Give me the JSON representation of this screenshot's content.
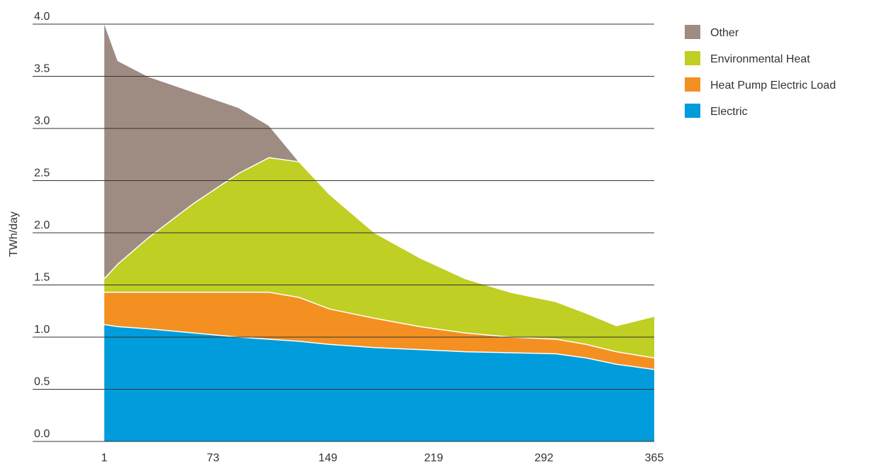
{
  "chart_data": {
    "type": "area",
    "stacked": true,
    "ylabel": "TWh/day",
    "xlabel": "",
    "ylim": [
      0,
      4.0
    ],
    "xlim": [
      1,
      365
    ],
    "yticks": [
      0.0,
      0.5,
      1.0,
      1.5,
      2.0,
      2.5,
      3.0,
      3.5,
      4.0
    ],
    "ytick_labels": [
      "0.0",
      "0.5",
      "1.0",
      "1.5",
      "2.0",
      "2.5",
      "3.0",
      "3.5",
      "4.0"
    ],
    "xticks": [
      1,
      73,
      149,
      219,
      292,
      365
    ],
    "xtick_labels": [
      "1",
      "73",
      "149",
      "219",
      "292",
      "365"
    ],
    "grid": "horizontal",
    "legend_position": "right",
    "x": [
      1,
      10,
      30,
      60,
      90,
      110,
      130,
      150,
      180,
      210,
      240,
      270,
      300,
      320,
      340,
      365
    ],
    "series": [
      {
        "name": "Electric",
        "color": "#009CDB",
        "values": [
          1.12,
          1.1,
          1.08,
          1.04,
          1.0,
          0.98,
          0.96,
          0.93,
          0.9,
          0.88,
          0.86,
          0.85,
          0.84,
          0.8,
          0.74,
          0.69
        ]
      },
      {
        "name": "Heat Pump Electric Load",
        "color": "#F39021",
        "values": [
          0.31,
          0.33,
          0.35,
          0.39,
          0.43,
          0.45,
          0.42,
          0.34,
          0.28,
          0.22,
          0.18,
          0.15,
          0.14,
          0.13,
          0.12,
          0.11
        ]
      },
      {
        "name": "Environmental Heat",
        "color": "#BFCF23",
        "values": [
          0.13,
          0.27,
          0.52,
          0.85,
          1.14,
          1.29,
          1.3,
          1.1,
          0.82,
          0.66,
          0.52,
          0.43,
          0.36,
          0.3,
          0.25,
          0.4
        ]
      },
      {
        "name": "Other",
        "color": "#9E8C82",
        "values": [
          2.45,
          1.95,
          1.55,
          1.07,
          0.63,
          0.31,
          0.0,
          0.0,
          0.0,
          0.0,
          0.0,
          0.0,
          0.0,
          0.0,
          0.0,
          0.0
        ]
      }
    ],
    "legend": [
      {
        "label": "Other",
        "color": "#9E8C82"
      },
      {
        "label": "Environmental Heat",
        "color": "#BFCF23"
      },
      {
        "label": "Heat Pump Electric Load",
        "color": "#F39021"
      },
      {
        "label": "Electric",
        "color": "#009CDB"
      }
    ]
  }
}
